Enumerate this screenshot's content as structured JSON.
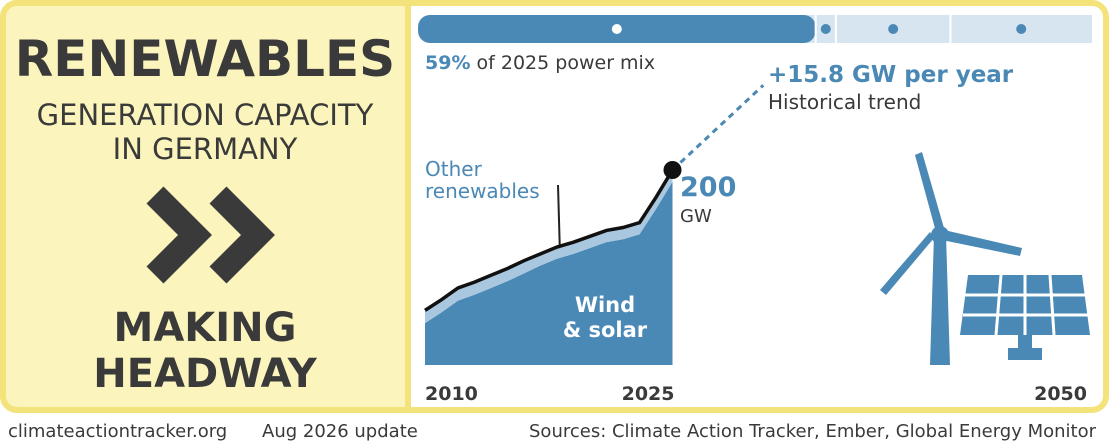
{
  "header": {
    "title": "RENEWABLES",
    "subtitle": "GENERATION CAPACITY\nIN GERMANY",
    "verdict": "MAKING\nHEADWAY"
  },
  "footer": {
    "site": "climateactiontracker.org",
    "update": "Aug 2026 update",
    "sources": "Sources: Climate Action Tracker, Ember, Global Energy Monitor"
  },
  "chart_data": {
    "type": "area",
    "power_mix": {
      "values": [
        59,
        3,
        17,
        21
      ],
      "value_labels": [
        "59%",
        null,
        null,
        null
      ],
      "colors": [
        "#4a88b5",
        "#d6e5f0",
        "#d6e5f0",
        "#d6e5f0"
      ],
      "text": "of 2025 power mix"
    },
    "x": [
      2010,
      2011,
      2012,
      2013,
      2014,
      2015,
      2016,
      2017,
      2018,
      2019,
      2020,
      2021,
      2022,
      2023,
      2024,
      2025
    ],
    "series": [
      {
        "name": "Wind\n& solar",
        "color": "#4a88b5",
        "values": [
          43,
          54,
          66,
          72,
          79,
          86,
          94,
          102,
          109,
          114,
          120,
          126,
          129,
          134,
          160,
          188
        ]
      },
      {
        "name": "Other\nrenewables",
        "color": "#a9c8e0",
        "values": [
          13,
          13,
          13,
          13,
          13,
          13,
          13,
          12,
          12,
          12,
          12,
          12,
          12,
          12,
          12,
          12
        ]
      }
    ],
    "endpoint": {
      "x": 2025,
      "value": 200,
      "unit": "GW"
    },
    "trend": {
      "label": "+15.8 GW per year",
      "note": "Historical trend",
      "per_year": 15.8,
      "until": 2030.5
    },
    "xlim": [
      2010,
      2050
    ],
    "xticks": [
      2010,
      2025,
      2050
    ],
    "ylim": [
      0,
      300
    ]
  }
}
